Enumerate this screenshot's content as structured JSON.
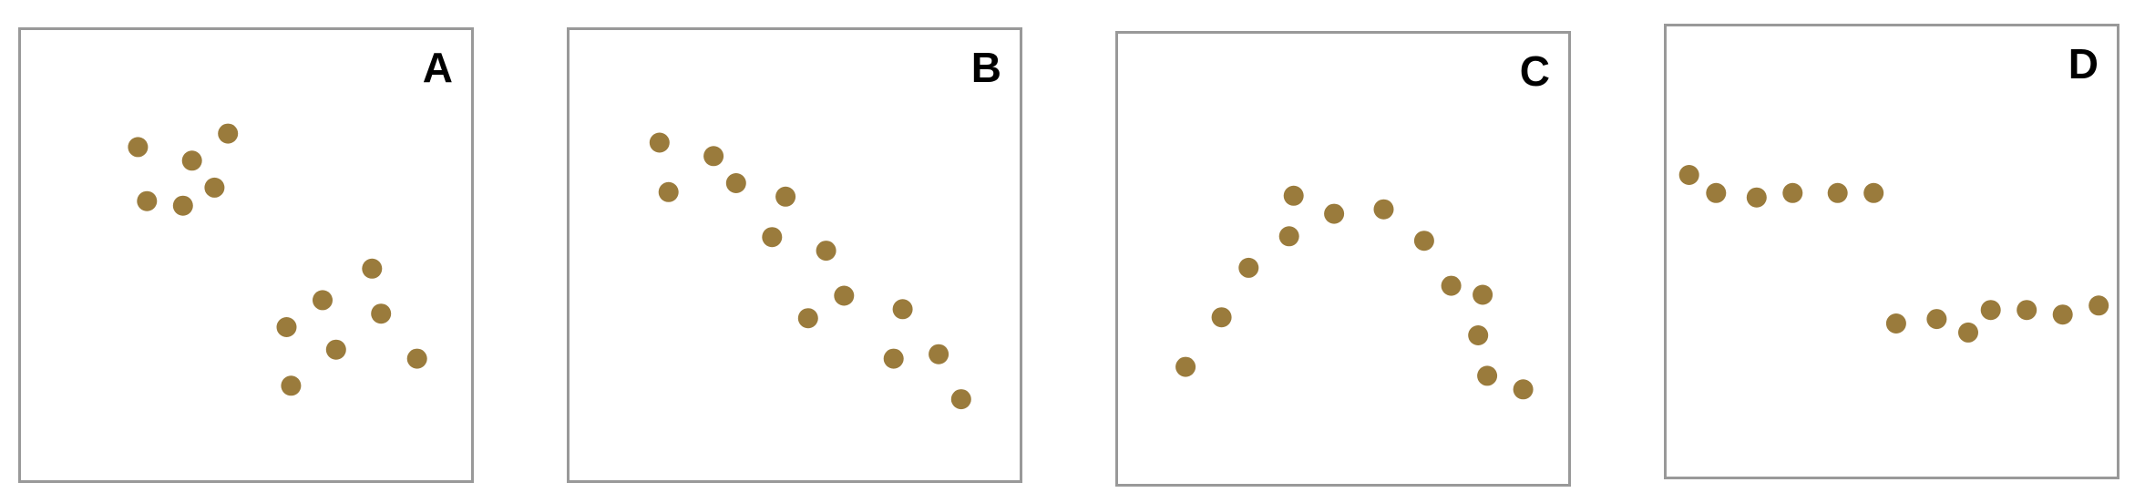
{
  "chart_data": [
    {
      "type": "scatter",
      "label": "A",
      "color": "#9a7b3c",
      "xlim": [
        0,
        100
      ],
      "ylim": [
        0,
        100
      ],
      "grid": false,
      "points": [
        {
          "x": 26,
          "y": 74
        },
        {
          "x": 28,
          "y": 62
        },
        {
          "x": 38,
          "y": 71
        },
        {
          "x": 36,
          "y": 61
        },
        {
          "x": 43,
          "y": 65
        },
        {
          "x": 46,
          "y": 77
        },
        {
          "x": 78,
          "y": 47
        },
        {
          "x": 67,
          "y": 40
        },
        {
          "x": 59,
          "y": 34
        },
        {
          "x": 80,
          "y": 37
        },
        {
          "x": 70,
          "y": 29
        },
        {
          "x": 88,
          "y": 27
        },
        {
          "x": 60,
          "y": 21
        }
      ]
    },
    {
      "type": "scatter",
      "label": "B",
      "color": "#9a7b3c",
      "xlim": [
        0,
        100
      ],
      "ylim": [
        0,
        100
      ],
      "grid": false,
      "points": [
        {
          "x": 20,
          "y": 75
        },
        {
          "x": 22,
          "y": 64
        },
        {
          "x": 32,
          "y": 72
        },
        {
          "x": 37,
          "y": 66
        },
        {
          "x": 48,
          "y": 63
        },
        {
          "x": 45,
          "y": 54
        },
        {
          "x": 57,
          "y": 51
        },
        {
          "x": 53,
          "y": 36
        },
        {
          "x": 61,
          "y": 41
        },
        {
          "x": 74,
          "y": 38
        },
        {
          "x": 72,
          "y": 27
        },
        {
          "x": 82,
          "y": 28
        },
        {
          "x": 87,
          "y": 18
        }
      ]
    },
    {
      "type": "scatter",
      "label": "C",
      "color": "#9a7b3c",
      "xlim": [
        0,
        100
      ],
      "ylim": [
        0,
        100
      ],
      "grid": false,
      "points": [
        {
          "x": 15,
          "y": 26
        },
        {
          "x": 23,
          "y": 37
        },
        {
          "x": 29,
          "y": 48
        },
        {
          "x": 38,
          "y": 55
        },
        {
          "x": 39,
          "y": 64
        },
        {
          "x": 48,
          "y": 60
        },
        {
          "x": 59,
          "y": 61
        },
        {
          "x": 68,
          "y": 54
        },
        {
          "x": 74,
          "y": 44
        },
        {
          "x": 81,
          "y": 42
        },
        {
          "x": 80,
          "y": 33
        },
        {
          "x": 82,
          "y": 24
        },
        {
          "x": 90,
          "y": 21
        }
      ]
    },
    {
      "type": "scatter",
      "label": "D",
      "color": "#9a7b3c",
      "xlim": [
        0,
        100
      ],
      "ylim": [
        0,
        100
      ],
      "grid": false,
      "points": [
        {
          "x": 5,
          "y": 67
        },
        {
          "x": 11,
          "y": 63
        },
        {
          "x": 20,
          "y": 62
        },
        {
          "x": 28,
          "y": 63
        },
        {
          "x": 38,
          "y": 63
        },
        {
          "x": 46,
          "y": 63
        },
        {
          "x": 51,
          "y": 34
        },
        {
          "x": 60,
          "y": 35
        },
        {
          "x": 67,
          "y": 32
        },
        {
          "x": 72,
          "y": 37
        },
        {
          "x": 80,
          "y": 37
        },
        {
          "x": 88,
          "y": 36
        },
        {
          "x": 96,
          "y": 38
        }
      ]
    }
  ]
}
